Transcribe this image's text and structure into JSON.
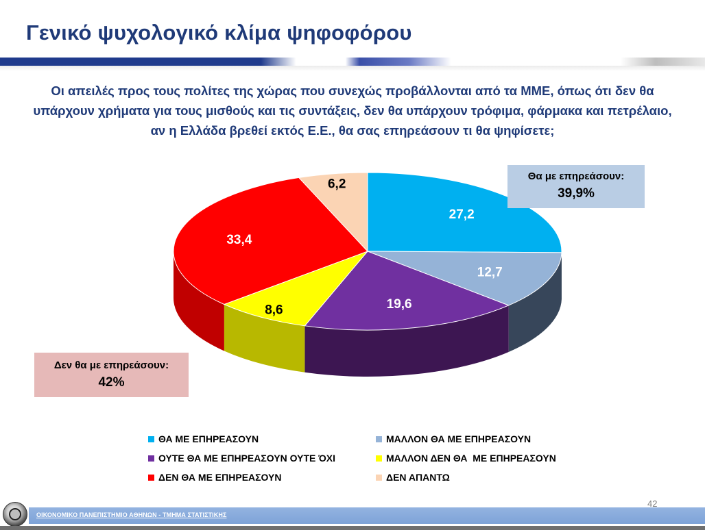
{
  "page": {
    "title": "Γενικό ψυχολογικό κλίμα ψηφοφόρου",
    "question": "Οι απειλές προς τους πολίτες της χώρας που συνεχώς προβάλλονται από τα ΜΜΕ, όπως ότι δεν θα υπάρχουν χρήματα για τους μισθούς και τις συντάξεις, δεν θα υπάρχουν τρόφιμα, φάρμακα και πετρέλαιο, αν η Ελλάδα βρεθεί εκτός Ε.Ε., θα σας επηρεάσουν τι θα ψηφίσετε;",
    "page_number": "42",
    "footer": "ΟΙΚΟΝΟΜΙΚΟ ΠΑΝΕΠΙΣΤΗΜΙΟ ΑΘΗΝΩΝ - ΤΜΗΜΑ ΣΤΑΤΙΣΤΙΚΗΣ"
  },
  "callouts": {
    "affect": {
      "label": "Θα με επηρεάσουν:",
      "value": "39,9%"
    },
    "no_affect": {
      "label": "Δεν θα με επηρεάσουν:",
      "value": "42%"
    }
  },
  "chart_data": {
    "type": "pie",
    "title": "",
    "categories": [
      "ΘΑ ΜΕ ΕΠΗΡΕΑΣΟΥΝ",
      "ΜΑΛΛΟΝ ΘΑ ΜΕ ΕΠΗΡΕΑΣΟΥΝ",
      "ΟΥΤΕ ΘΑ ΜΕ ΕΠΗΡΕΑΣΟΥΝ ΟΥΤΕ ΌΧΙ",
      "ΜΑΛΛΟΝ ΔΕΝ ΘΑ  ΜΕ ΕΠΗΡΕΑΣΟΥΝ",
      "ΔΕΝ ΘΑ ΜΕ ΕΠΗΡΕΑΣΟΥΝ",
      "ΔΕΝ ΑΠΑΝΤΩ"
    ],
    "values": [
      27.2,
      12.7,
      19.6,
      8.6,
      33.4,
      6.2
    ],
    "data_labels": [
      "27,2",
      "12,7",
      "19,6",
      "8,6",
      "33,4",
      "6,2"
    ],
    "colors": [
      "#00b0f0",
      "#95b3d7",
      "#7030a0",
      "#ffff00",
      "#ff0000",
      "#fbd4b4"
    ],
    "side_colors": [
      "#0a86b8",
      "#37465a",
      "#3d1652",
      "#b8b800",
      "#c00000",
      "#d3a888"
    ],
    "label_colors": [
      "#ffffff",
      "#ffffff",
      "#ffffff",
      "#000000",
      "#ffffff",
      "#000000"
    ],
    "legend_placement": "bottom",
    "three_d": true
  }
}
